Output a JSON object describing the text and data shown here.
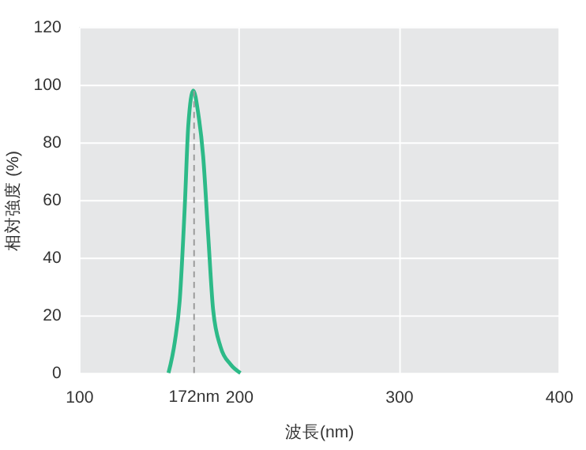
{
  "chart_data": {
    "type": "line",
    "xlabel": "波長(nm)",
    "ylabel": "相対強度 (%)",
    "x": [
      156,
      160,
      163,
      166.2,
      168.4,
      171.5,
      174.6,
      177.7,
      180.8,
      183.9,
      188.6,
      194.8,
      201
    ],
    "series": [
      {
        "color": "#2dba88",
        "values": [
          0,
          11,
          25,
          58,
          86,
          98,
          90,
          75,
          48,
          22,
          9,
          3,
          0
        ]
      }
    ],
    "xlim": [
      100,
      400
    ],
    "xticks": [
      100,
      200,
      300,
      400
    ],
    "ylim": [
      0,
      120
    ],
    "yticks": [
      0,
      20,
      40,
      60,
      80,
      100,
      120
    ],
    "grid": true,
    "marker": "none",
    "line_style": "solid",
    "ref_lines": [
      {
        "axis": "x",
        "value": 172,
        "label": "172nm",
        "color": "#999999",
        "line_style": "dashed"
      }
    ]
  }
}
